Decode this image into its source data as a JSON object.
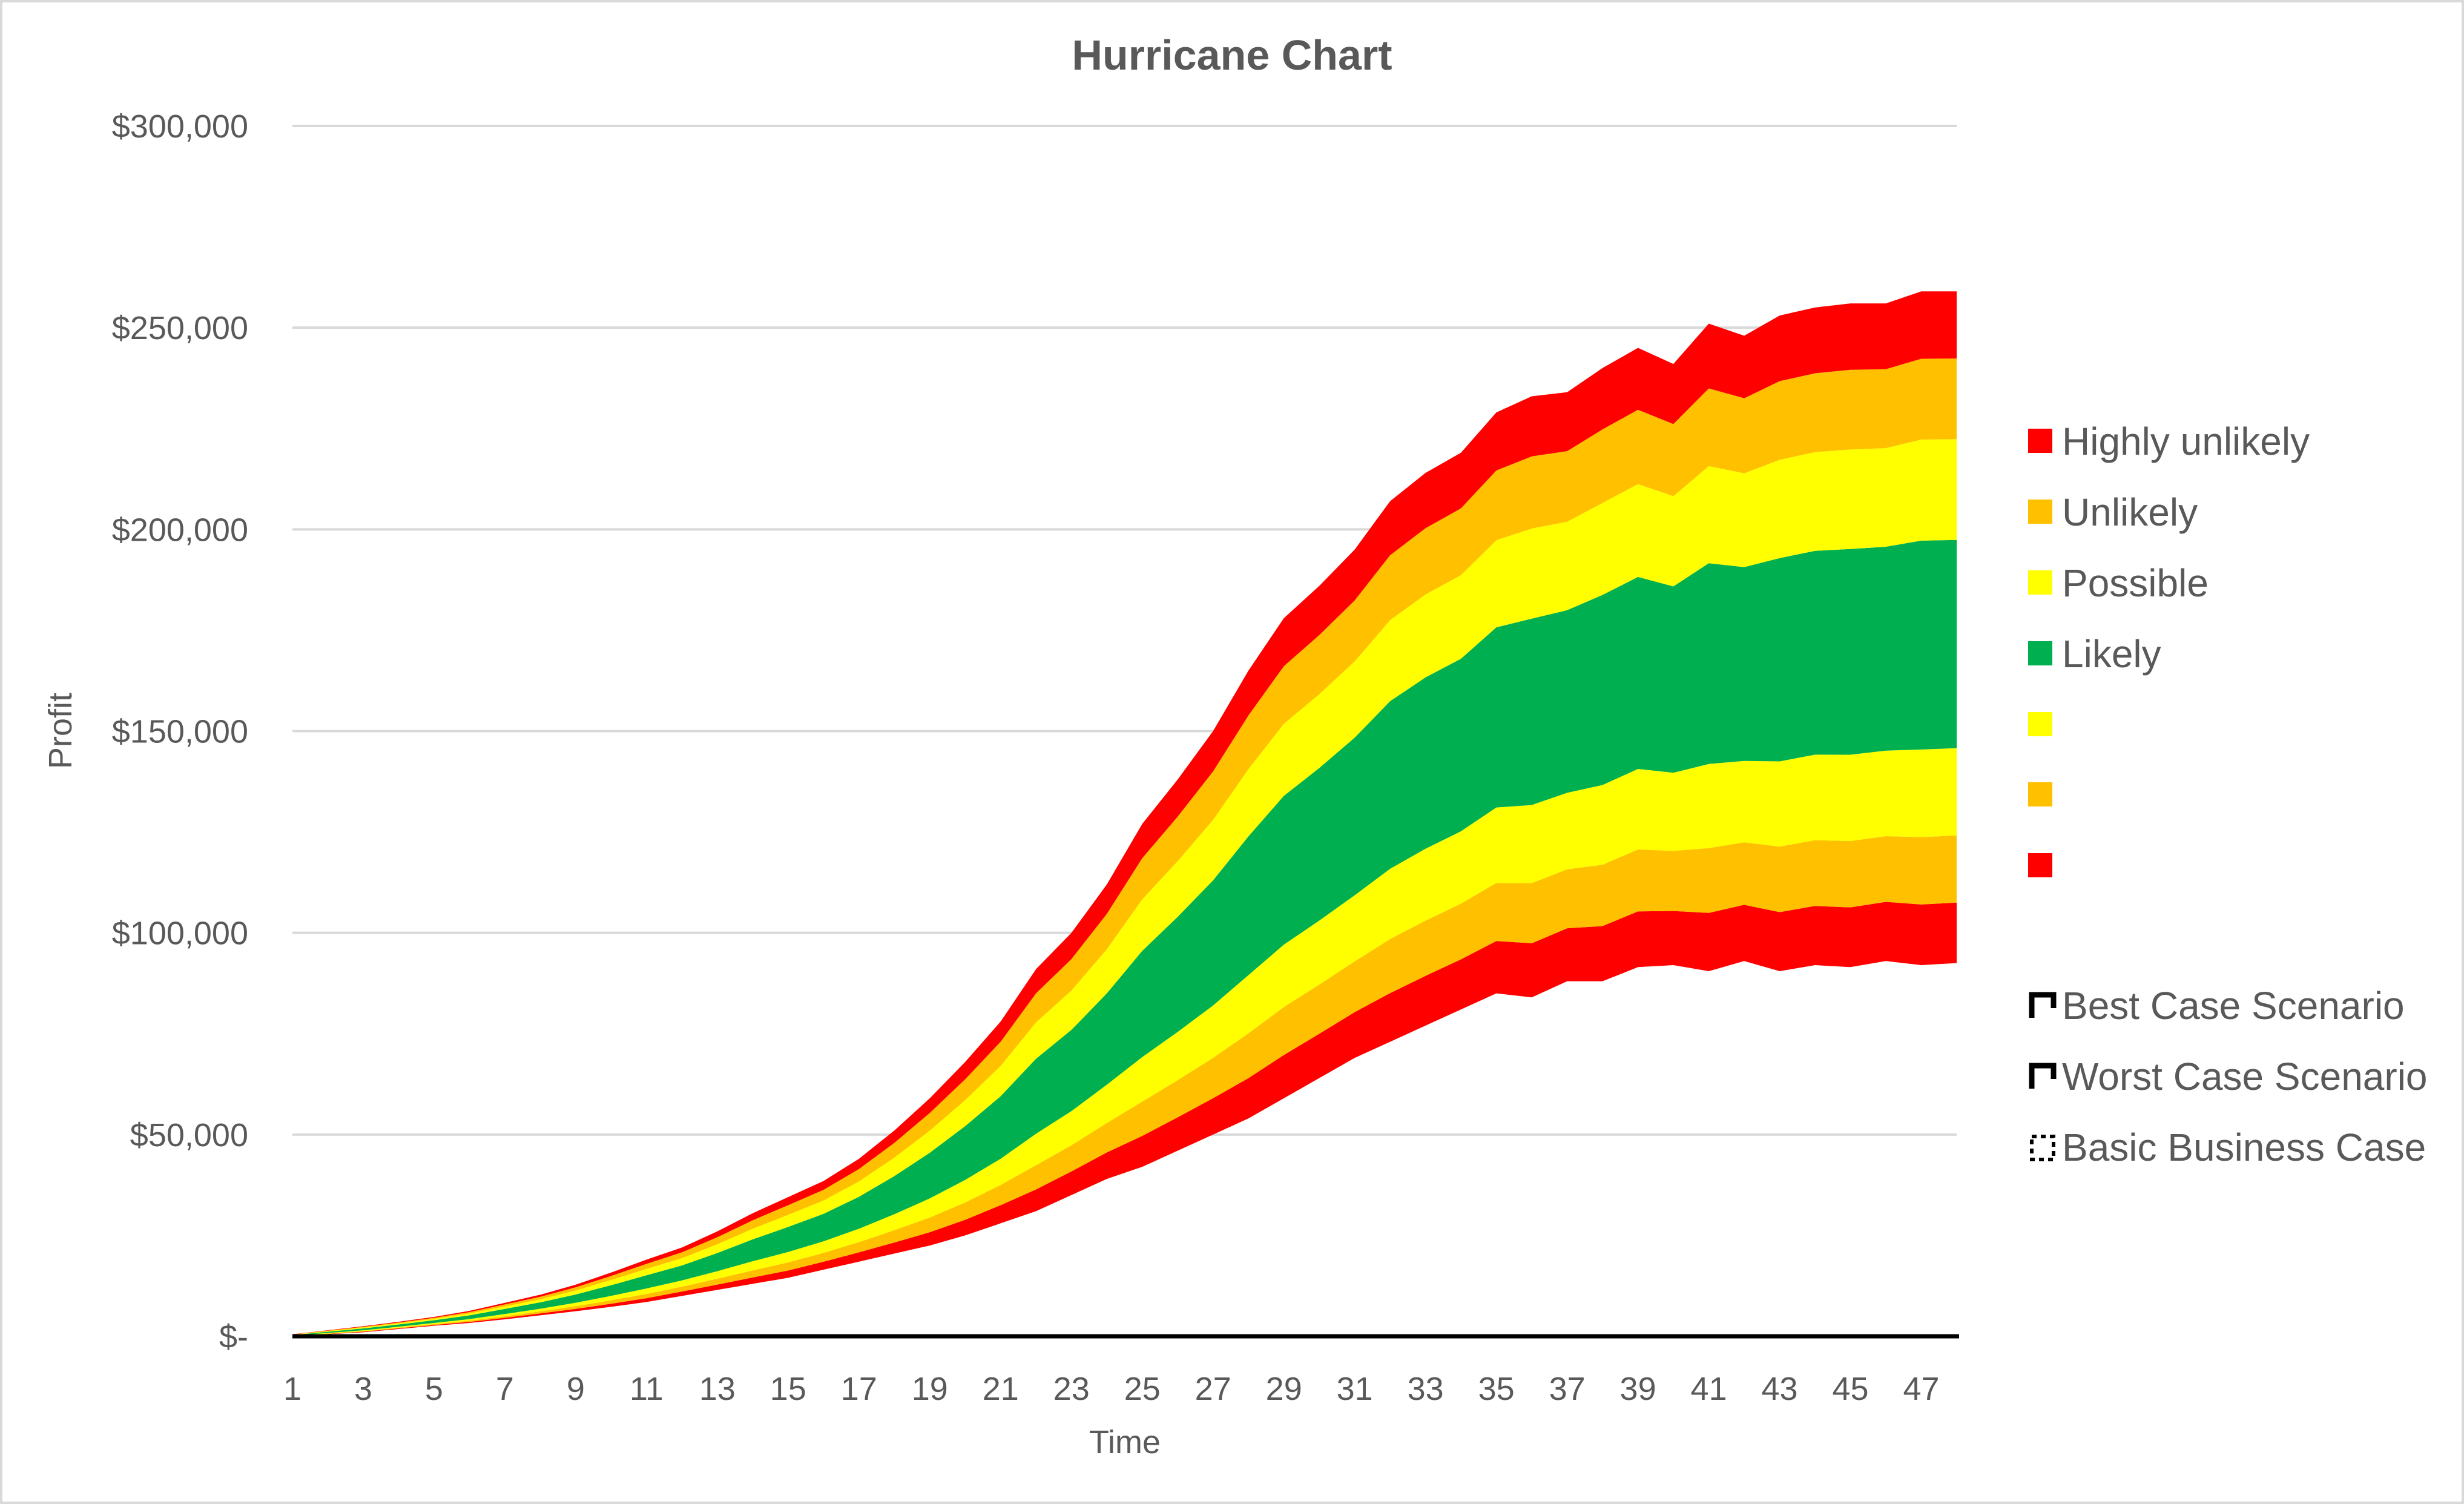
{
  "chart_data": {
    "type": "area",
    "stacked": true,
    "title": "Hurricane Chart",
    "xlabel": "Time",
    "ylabel": "Profit",
    "x": [
      1,
      2,
      3,
      4,
      5,
      6,
      7,
      8,
      9,
      10,
      11,
      12,
      13,
      14,
      15,
      16,
      17,
      18,
      19,
      20,
      21,
      22,
      23,
      24,
      25,
      26,
      27,
      28,
      29,
      30,
      31,
      32,
      33,
      34,
      35,
      36,
      37,
      38,
      39,
      40,
      41,
      42,
      43,
      44,
      45,
      46,
      47,
      48
    ],
    "x_tick_labels": [
      "1",
      "3",
      "5",
      "7",
      "9",
      "11",
      "13",
      "15",
      "17",
      "19",
      "21",
      "23",
      "25",
      "27",
      "29",
      "31",
      "33",
      "35",
      "37",
      "39",
      "41",
      "43",
      "45",
      "47"
    ],
    "y_tick_labels": [
      "$-",
      "$50,000",
      "$100,000",
      "$150,000",
      "$200,000",
      "$250,000",
      "$300,000"
    ],
    "ylim": [
      0,
      300000
    ],
    "grid": true,
    "legend_position": "right",
    "series": [
      {
        "name": "",
        "color": "none",
        "values": [
          0,
          500,
          1000,
          1800,
          2600,
          3300,
          4200,
          5200,
          6200,
          7300,
          8500,
          10000,
          11500,
          13000,
          14500,
          16500,
          18500,
          20500,
          22500,
          25000,
          28000,
          31000,
          35000,
          39000,
          42000,
          46000,
          50000,
          54000,
          59000,
          64000,
          69000,
          73000,
          77000,
          81000,
          85000,
          84000,
          88000,
          88000,
          91500,
          92000,
          90500,
          93000,
          90500,
          92000,
          91500,
          93000,
          92000,
          92500
        ]
      },
      {
        "name": "",
        "color": "#FF0000",
        "values": [
          45,
          90,
          135,
          162,
          198,
          270,
          369,
          459,
          594,
          765,
          945,
          1080,
          1305,
          1575,
          1800,
          1980,
          2295,
          2745,
          3285,
          3870,
          4500,
          5400,
          5850,
          6570,
          7650,
          8280,
          9000,
          9990,
          10710,
          10980,
          11340,
          12060,
          12330,
          12420,
          12960,
          13410,
          13140,
          13680,
          13815,
          13410,
          14445,
          13950,
          14625,
          14670,
          14805,
          14670,
          15030,
          14985
        ]
      },
      {
        "name": "",
        "color": "#FFC000",
        "values": [
          50,
          100,
          150,
          180,
          220,
          300,
          410,
          510,
          660,
          850,
          1050,
          1200,
          1450,
          1750,
          2000,
          2200,
          2550,
          3050,
          3650,
          4300,
          5000,
          6000,
          6500,
          7300,
          8500,
          9200,
          10000,
          11100,
          11900,
          12200,
          12600,
          13400,
          13700,
          13800,
          14400,
          14900,
          14600,
          15200,
          15350,
          14900,
          16050,
          15500,
          16250,
          16300,
          16450,
          16300,
          16700,
          16650
        ]
      },
      {
        "name": "",
        "color": "#FFFF00",
        "values": [
          65,
          130,
          195,
          234,
          286,
          390,
          533,
          663,
          858,
          1105,
          1365,
          1560,
          1885,
          2275,
          2600,
          2860,
          3315,
          3965,
          4745,
          5590,
          6500,
          7800,
          8450,
          9490,
          11050,
          11960,
          13000,
          14430,
          15470,
          15860,
          16380,
          17420,
          17810,
          17940,
          18720,
          19370,
          18980,
          19760,
          19955,
          19370,
          20865,
          20150,
          21125,
          21190,
          21385,
          21190,
          21710,
          21645
        ]
      },
      {
        "name": "Likely",
        "color": "#00B050",
        "values": [
          155,
          310,
          465,
          558,
          682,
          930,
          1271,
          1581,
          2046,
          2635,
          3255,
          3720,
          4495,
          5425,
          6200,
          6820,
          7905,
          9455,
          11315,
          13330,
          15500,
          18600,
          20150,
          22630,
          26350,
          28520,
          31000,
          34410,
          36890,
          37820,
          39060,
          41540,
          42470,
          42780,
          44640,
          46190,
          45260,
          47120,
          47585,
          46190,
          49755,
          48050,
          50375,
          50530,
          50995,
          50530,
          51770,
          51615
        ]
      },
      {
        "name": "Possible",
        "color": "#FFFF00",
        "values": [
          75,
          150,
          225,
          270,
          330,
          450,
          615,
          765,
          990,
          1275,
          1575,
          1800,
          2175,
          2625,
          3000,
          3300,
          3825,
          4575,
          5475,
          6450,
          7500,
          9000,
          9750,
          10950,
          12750,
          13800,
          15000,
          16650,
          17850,
          18300,
          18900,
          20100,
          20550,
          20700,
          21600,
          22350,
          21900,
          22800,
          23025,
          22350,
          24075,
          23250,
          24375,
          24450,
          24675,
          24450,
          25050,
          24975
        ]
      },
      {
        "name": "Unlikely",
        "color": "#FFC000",
        "values": [
          60,
          120,
          180,
          216,
          264,
          360,
          492,
          612,
          792,
          1020,
          1260,
          1440,
          1740,
          2100,
          2400,
          2640,
          3060,
          3660,
          4380,
          5160,
          6000,
          7200,
          7800,
          8760,
          10200,
          11040,
          12000,
          13320,
          14280,
          14640,
          15120,
          16080,
          16440,
          16560,
          17280,
          17880,
          17520,
          18240,
          18420,
          17880,
          19260,
          18600,
          19500,
          19560,
          19740,
          19560,
          20040,
          19980
        ]
      },
      {
        "name": "Highly unlikely",
        "color": "#FF0000",
        "values": [
          50,
          100,
          150,
          180,
          220,
          300,
          410,
          510,
          660,
          850,
          1050,
          1200,
          1450,
          1750,
          2000,
          2200,
          2550,
          3050,
          3650,
          4300,
          5000,
          6000,
          6500,
          7300,
          8500,
          9200,
          10000,
          11100,
          11900,
          12200,
          12600,
          13400,
          13700,
          13800,
          14400,
          14900,
          14600,
          15200,
          15350,
          14900,
          16050,
          15500,
          16250,
          16300,
          16450,
          16300,
          16700,
          16650
        ]
      }
    ],
    "legend": [
      {
        "label": "Highly unlikely",
        "color": "#FF0000",
        "kind": "fill"
      },
      {
        "label": "Unlikely",
        "color": "#FFC000",
        "kind": "fill"
      },
      {
        "label": "Possible",
        "color": "#FFFF00",
        "kind": "fill"
      },
      {
        "label": "Likely",
        "color": "#00B050",
        "kind": "fill"
      },
      {
        "label": "",
        "color": "#FFFF00",
        "kind": "fill"
      },
      {
        "label": "",
        "color": "#FFC000",
        "kind": "fill"
      },
      {
        "label": "",
        "color": "#FF0000",
        "kind": "fill"
      },
      {
        "label": "Best Case Scenario",
        "color": "#000000",
        "kind": "line"
      },
      {
        "label": "Worst Case Scenario",
        "color": "#000000",
        "kind": "line"
      },
      {
        "label": "Basic Business Case",
        "color": "#000000",
        "kind": "dotted-line"
      }
    ]
  }
}
